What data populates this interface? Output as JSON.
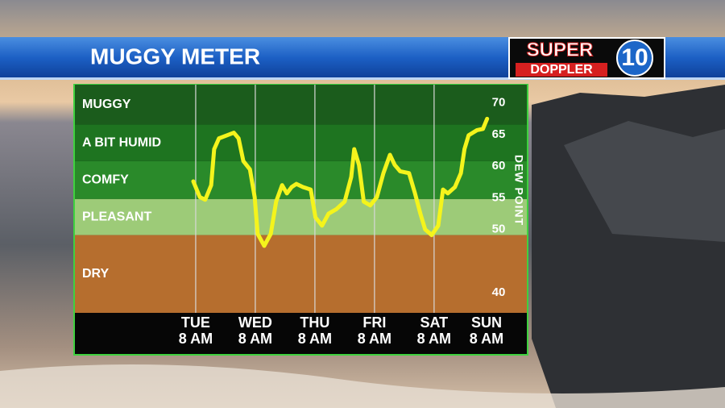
{
  "title": "MUGGY METER",
  "logo": {
    "line1": "SUPER",
    "line2": "DOPPLER",
    "number": "10"
  },
  "chart_data": {
    "type": "line",
    "y_label": "DEW POINT",
    "zones": [
      {
        "name": "MUGGY",
        "from": 66.6,
        "to": 72.9,
        "color": "#1b5c1c"
      },
      {
        "name": "A BIT HUMID",
        "from": 60.8,
        "to": 66.6,
        "color": "#1e7420"
      },
      {
        "name": "COMFY",
        "from": 54.8,
        "to": 60.8,
        "color": "#2a8a2a"
      },
      {
        "name": "PLEASANT",
        "from": 49.1,
        "to": 54.8,
        "color": "#9dcb78"
      },
      {
        "name": "DRY",
        "from": 36.8,
        "to": 49.1,
        "color": "#b66e2e"
      }
    ],
    "xlim": [
      -2.04,
      5.57
    ],
    "xticks": [
      {
        "value": 0,
        "label": "TUE"
      },
      {
        "value": 1,
        "label": "WED"
      },
      {
        "value": 2,
        "label": "THU"
      },
      {
        "value": 3,
        "label": "FRI"
      },
      {
        "value": 4,
        "label": "SAT"
      },
      {
        "value": 4.88,
        "label": "SUN"
      }
    ],
    "xtick_sublabels": [
      "8 AM",
      "8 AM",
      "8 AM",
      "8 AM",
      "8 AM",
      "8 AM"
    ],
    "ylim": [
      36.8,
      72.9
    ],
    "yticks": [
      40,
      50,
      55,
      60,
      65,
      70
    ],
    "grid": true,
    "series": [
      {
        "name": "Dew point",
        "color": "#f4f41c",
        "x": [
          -0.04,
          0.07,
          0.16,
          0.26,
          0.31,
          0.39,
          0.53,
          0.64,
          0.72,
          0.8,
          0.91,
          0.99,
          1.04,
          1.15,
          1.26,
          1.35,
          1.45,
          1.53,
          1.61,
          1.69,
          1.8,
          1.93,
          2.01,
          2.12,
          2.23,
          2.36,
          2.5,
          2.61,
          2.66,
          2.74,
          2.82,
          2.93,
          3.04,
          3.15,
          3.26,
          3.34,
          3.43,
          3.58,
          3.68,
          3.77,
          3.85,
          3.96,
          4.07,
          4.15,
          4.23,
          4.35,
          4.45,
          4.51,
          4.58,
          4.72,
          4.82,
          4.89
        ],
        "values": [
          57.6,
          55.1,
          54.7,
          57.0,
          62.7,
          64.4,
          64.9,
          65.3,
          64.4,
          60.8,
          59.5,
          55.1,
          49.3,
          47.4,
          49.3,
          54.4,
          57.0,
          55.7,
          56.7,
          57.2,
          56.7,
          56.3,
          51.9,
          50.6,
          52.5,
          53.2,
          54.4,
          58.3,
          62.7,
          60.2,
          54.4,
          53.8,
          55.1,
          58.9,
          61.8,
          60.2,
          59.2,
          58.9,
          55.7,
          52.5,
          50.0,
          49.1,
          50.6,
          56.3,
          55.7,
          56.7,
          58.9,
          62.7,
          64.9,
          65.7,
          65.9,
          67.5
        ]
      }
    ]
  }
}
